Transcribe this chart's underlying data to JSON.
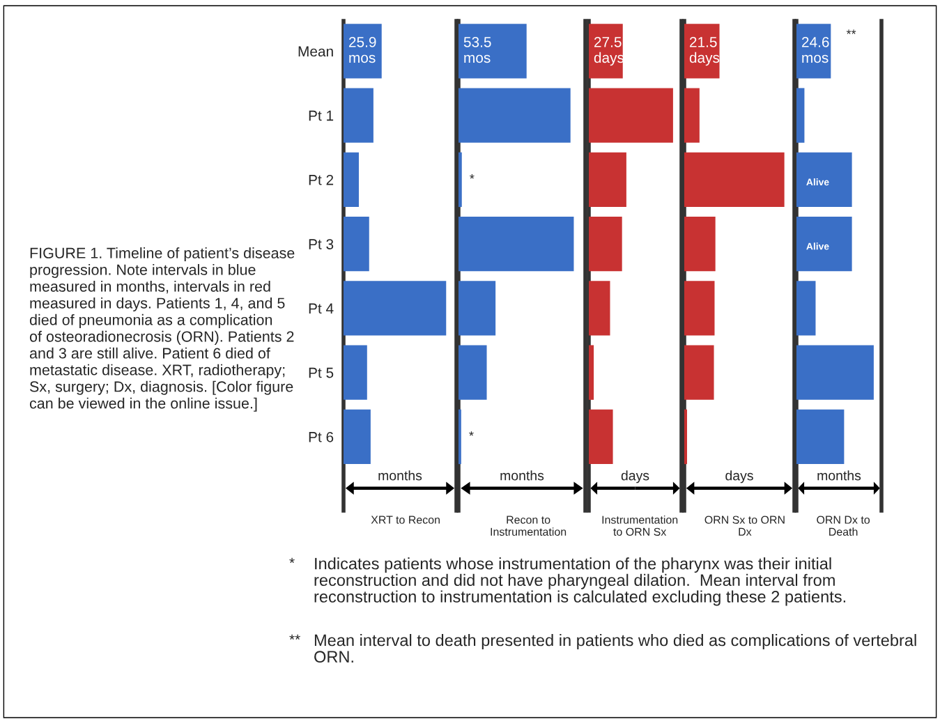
{
  "chart_data": [
    {
      "type": "bar",
      "orientation": "horizontal",
      "tick_labels": "y",
      "title": "XRT to Recon",
      "xlabel": "months",
      "categories": [
        "Mean",
        "Pt 1",
        "Pt 2",
        "Pt 3",
        "Pt 4",
        "Pt 5",
        "Pt 6"
      ],
      "color": "#3a6fc6",
      "values": [
        25.9,
        20.3,
        10.4,
        17.4,
        69.7,
        16.0,
        18.4
      ],
      "value_labels": [
        "25.9\nmos",
        null,
        null,
        null,
        null,
        null,
        null
      ]
    },
    {
      "type": "bar",
      "orientation": "horizontal",
      "tick_labels": false,
      "title": "Recon to\nInstrumentation",
      "xlabel": "months",
      "categories": [
        "Mean",
        "Pt 1",
        "Pt 2",
        "Pt 3",
        "Pt 4",
        "Pt 5",
        "Pt 6"
      ],
      "color": "#3a6fc6",
      "values": [
        53.5,
        88,
        2.6,
        90.6,
        29.1,
        22.2,
        2.1
      ],
      "value_labels": [
        "53.5\nmos",
        null,
        null,
        null,
        null,
        null,
        null
      ],
      "annotations": [
        {
          "text": "*",
          "x": 2.6,
          "y": "Pt 2"
        },
        {
          "text": "*",
          "x": 2.1,
          "y": "Pt 6"
        }
      ]
    },
    {
      "type": "bar",
      "orientation": "horizontal",
      "tick_labels": false,
      "title": "Instrumentation\nto ORN Sx",
      "xlabel": "days",
      "categories": [
        "Mean",
        "Pt 1",
        "Pt 2",
        "Pt 3",
        "Pt 4",
        "Pt 5",
        "Pt 6"
      ],
      "color": "#c83232",
      "values": [
        27.5,
        68.2,
        30.4,
        26.9,
        17.2,
        4.0,
        19.5
      ],
      "value_labels": [
        "27.5\ndays",
        null,
        null,
        null,
        null,
        null,
        null
      ]
    },
    {
      "type": "bar",
      "orientation": "horizontal",
      "tick_labels": false,
      "title": "ORN Sx to ORN\nDx",
      "xlabel": "days",
      "categories": [
        "Mean",
        "Pt 1",
        "Pt 2",
        "Pt 3",
        "Pt 4",
        "Pt 5",
        "Pt 6"
      ],
      "color": "#c83232",
      "values": [
        21.5,
        9.3,
        61.1,
        19.0,
        18.5,
        18.1,
        1.7
      ],
      "value_labels": [
        "21.5\ndays",
        null,
        null,
        null,
        null,
        null,
        null
      ]
    },
    {
      "type": "bar",
      "orientation": "horizontal",
      "tick_labels": false,
      "title": "ORN Dx to\nDeath",
      "xlabel": "months",
      "categories": [
        "Mean",
        "Pt 1",
        "Pt 2",
        "Pt 3",
        "Pt 4",
        "Pt 5",
        "Pt 6"
      ],
      "color": "#3a6fc6",
      "values": [
        24.6,
        5.7,
        39.7,
        39.7,
        13.7,
        55.3,
        34.1
      ],
      "value_labels": [
        "24.6\nmos",
        null,
        "Alive",
        "Alive",
        null,
        null,
        null
      ],
      "annotations": [
        {
          "text": "**",
          "x": 24.6,
          "y": "Mean"
        }
      ]
    },
    {
      "type": "other",
      "annotations": [
        "FIGURE 1. Timeline of patient’s disease\nprogression. Note intervals in blue\nmeasured in months, intervals in red\nmeasured in days. Patients 1, 4, and 5\ndied of pneumonia as a complication\nof osteoradionecrosis (ORN). Patients 2\nand 3 are still alive. Patient 6 died of\nmetastatic disease. XRT, radiotherapy;\nSx, surgery; Dx, diagnosis. [Color figure\ncan be viewed in the online issue.]",
        "*\tIndicates patients whose instrumentation of the pharynx was their initial\nreconstruction and did not have pharyngeal dilation.  Mean interval from\nreconstruction to instrumentation is calculated excluding these 2 patients.",
        "**\tMean interval to death presented in patients who died as complications of vertebral\nORN."
      ]
    }
  ]
}
